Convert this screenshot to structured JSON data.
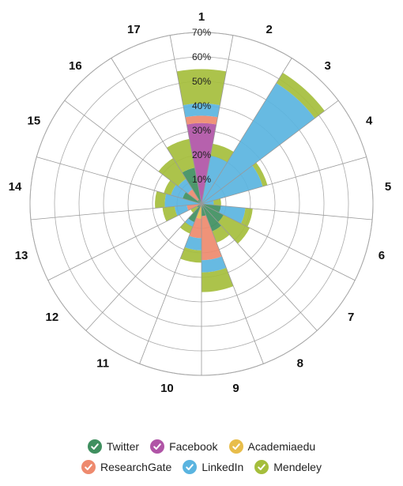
{
  "chart_data": {
    "type": "polar-stacked-bar",
    "categories": [
      "1",
      "2",
      "3",
      "4",
      "5",
      "6",
      "7",
      "8",
      "9",
      "10",
      "11",
      "12",
      "13",
      "14",
      "15",
      "16",
      "17"
    ],
    "radial_ticks": [
      "10%",
      "20%",
      "30%",
      "40%",
      "50%",
      "60%",
      "70%"
    ],
    "rmax": 70,
    "series": [
      {
        "name": "Twitter",
        "color": "#3f8f5f",
        "values": [
          0,
          0,
          0,
          0,
          0,
          8,
          10,
          12,
          5,
          0,
          8,
          2,
          0,
          0,
          8,
          2,
          15
        ]
      },
      {
        "name": "Facebook",
        "color": "#b054a6",
        "values": [
          33,
          0,
          0,
          0,
          0,
          0,
          0,
          0,
          0,
          0,
          0,
          0,
          0,
          0,
          0,
          0,
          0
        ]
      },
      {
        "name": "Academiaedu",
        "color": "#e8bd4a",
        "values": [
          0,
          0,
          0,
          0,
          0,
          0,
          0,
          0,
          0,
          6,
          0,
          0,
          0,
          0,
          0,
          0,
          0
        ]
      },
      {
        "name": "ResearchGate",
        "color": "#ee8a6e",
        "values": [
          3,
          0,
          0,
          0,
          0,
          0,
          0,
          0,
          18,
          8,
          0,
          0,
          6,
          0,
          0,
          5,
          0
        ]
      },
      {
        "name": "LinkedIn",
        "color": "#5ab4e0",
        "values": [
          5,
          20,
          58,
          26,
          5,
          10,
          0,
          0,
          5,
          5,
          2,
          0,
          5,
          15,
          5,
          5,
          0
        ]
      },
      {
        "name": "Mendeley",
        "color": "#a5be3c",
        "values": [
          14,
          5,
          5,
          2,
          3,
          3,
          12,
          5,
          8,
          5,
          3,
          3,
          5,
          4,
          3,
          10,
          12
        ]
      }
    ],
    "legend_placement": "bottom"
  }
}
